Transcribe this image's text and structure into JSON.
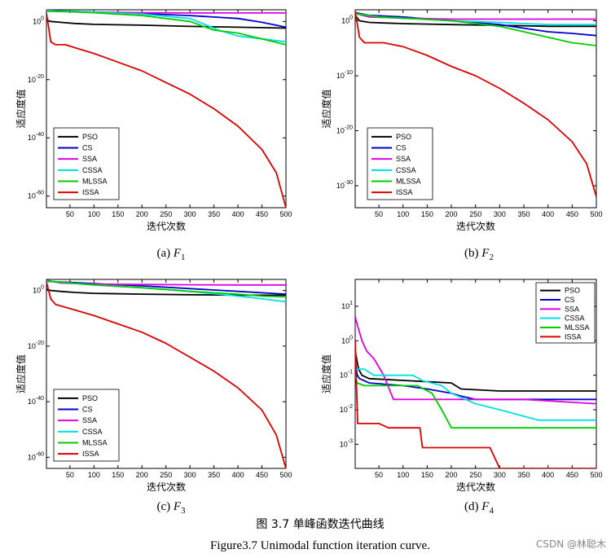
{
  "figure": {
    "caption_cn": "图 3.7  单峰函数迭代曲线",
    "caption_en": "Figure3.7 Unimodal function iteration curve.",
    "watermark": "CSDN @林聪木"
  },
  "series_colors": {
    "PSO": "#000000",
    "CS": "#0000cc",
    "SSA": "#e000e0",
    "CSSA": "#00e0e0",
    "MLSSA": "#00cc00",
    "ISSA": "#dd0000"
  },
  "chart_data": [
    {
      "type": "line",
      "panel": "a",
      "caption_prefix": "(a) ",
      "caption_func": "F",
      "caption_sub": "1",
      "xlabel": "迭代次数",
      "ylabel": "适应度值",
      "yscale": "log",
      "xlim": [
        1,
        500
      ],
      "ylim": [
        1e-64,
        10000.0
      ],
      "xticks": [
        50,
        100,
        150,
        200,
        250,
        300,
        350,
        400,
        450,
        500
      ],
      "ytick_labels": [
        {
          "base": "10",
          "exp": "0",
          "value": 1
        },
        {
          "base": "10",
          "exp": "-20",
          "value": 1e-20
        },
        {
          "base": "10",
          "exp": "-40",
          "value": 1e-40
        },
        {
          "base": "10",
          "exp": "-60",
          "value": 1e-60
        }
      ],
      "legend": [
        "PSO",
        "CS",
        "SSA",
        "CSSA",
        "MLSSA",
        "ISSA"
      ],
      "legend_position": "bottom-left",
      "series": [
        {
          "name": "PSO",
          "x": [
            1,
            10,
            30,
            60,
            100,
            200,
            300,
            400,
            500
          ],
          "y": [
            3,
            1,
            0.5,
            0.2,
            0.1,
            0.05,
            0.02,
            0.01,
            0.005
          ]
        },
        {
          "name": "CS",
          "x": [
            1,
            50,
            100,
            200,
            300,
            400,
            450,
            500
          ],
          "y": [
            5000,
            3000,
            1500,
            500,
            100,
            10,
            0.5,
            0.01
          ]
        },
        {
          "name": "SSA",
          "x": [
            1,
            30,
            100,
            200,
            300,
            400,
            500
          ],
          "y": [
            8000,
            3000,
            1500,
            900,
            800,
            800,
            800
          ]
        },
        {
          "name": "CSSA",
          "x": [
            1,
            50,
            100,
            200,
            300,
            360,
            400,
            450,
            500
          ],
          "y": [
            5000,
            3000,
            1500,
            300,
            10,
            0.001,
            1e-05,
            1e-06,
            1e-07
          ]
        },
        {
          "name": "MLSSA",
          "x": [
            1,
            50,
            100,
            200,
            300,
            350,
            400,
            450,
            500
          ],
          "y": [
            3000,
            2000,
            1000,
            100,
            1,
            0.001,
            0.0001,
            1e-06,
            1e-08
          ]
        },
        {
          "name": "ISSA",
          "x": [
            1,
            10,
            20,
            40,
            60,
            100,
            150,
            200,
            250,
            300,
            350,
            400,
            450,
            480,
            500
          ],
          "y": [
            1000,
            1e-07,
            1e-08,
            1e-08,
            1e-09,
            1e-11,
            1e-14,
            1e-17,
            1e-21,
            1e-25,
            1e-30,
            1e-36,
            1e-44,
            1e-52,
            1e-64
          ]
        }
      ]
    },
    {
      "type": "line",
      "panel": "b",
      "caption_prefix": "(b) ",
      "caption_func": "F",
      "caption_sub": "2",
      "xlabel": "迭代次数",
      "ylabel": "适应度值",
      "yscale": "log",
      "xlim": [
        1,
        500
      ],
      "ylim": [
        1e-34,
        100.0
      ],
      "xticks": [
        50,
        100,
        150,
        200,
        250,
        300,
        350,
        400,
        450,
        500
      ],
      "ytick_labels": [
        {
          "base": "10",
          "exp": "0",
          "value": 1
        },
        {
          "base": "10",
          "exp": "-10",
          "value": 1e-10
        },
        {
          "base": "10",
          "exp": "-20",
          "value": 1e-20
        },
        {
          "base": "10",
          "exp": "-30",
          "value": 1e-30
        }
      ],
      "legend": [
        "PSO",
        "CS",
        "SSA",
        "CSSA",
        "MLSSA",
        "ISSA"
      ],
      "legend_position": "bottom-left",
      "series": [
        {
          "name": "PSO",
          "x": [
            1,
            10,
            30,
            60,
            100,
            200,
            300,
            400,
            500
          ],
          "y": [
            10,
            1,
            0.5,
            0.4,
            0.3,
            0.2,
            0.15,
            0.1,
            0.1
          ]
        },
        {
          "name": "CS",
          "x": [
            1,
            30,
            100,
            200,
            300,
            400,
            450,
            500
          ],
          "y": [
            30,
            10,
            5,
            1,
            0.2,
            0.01,
            0.005,
            0.002
          ]
        },
        {
          "name": "SSA",
          "x": [
            1,
            30,
            100,
            200,
            300,
            400,
            500
          ],
          "y": [
            20,
            5,
            3,
            2,
            2,
            2,
            2
          ]
        },
        {
          "name": "CSSA",
          "x": [
            1,
            50,
            100,
            200,
            300,
            400,
            500
          ],
          "y": [
            20,
            5,
            3,
            1,
            0.5,
            0.2,
            0.2
          ]
        },
        {
          "name": "MLSSA",
          "x": [
            1,
            50,
            100,
            200,
            300,
            350,
            400,
            450,
            500
          ],
          "y": [
            20,
            5,
            3,
            1,
            0.1,
            0.01,
            0.001,
            0.0001,
            3e-05
          ]
        },
        {
          "name": "ISSA",
          "x": [
            1,
            10,
            20,
            40,
            60,
            100,
            150,
            200,
            250,
            300,
            350,
            400,
            450,
            480,
            500
          ],
          "y": [
            50,
            0.001,
            0.0001,
            0.0001,
            0.0001,
            2e-05,
            5e-07,
            5e-09,
            1e-10,
            5e-13,
            1e-15,
            1e-18,
            1e-22,
            1e-26,
            1e-32
          ]
        }
      ]
    },
    {
      "type": "line",
      "panel": "c",
      "caption_prefix": "(c) ",
      "caption_func": "F",
      "caption_sub": "3",
      "xlabel": "迭代次数",
      "ylabel": "适应度值",
      "yscale": "log",
      "xlim": [
        1,
        500
      ],
      "ylim": [
        1e-64,
        10000.0
      ],
      "xticks": [
        50,
        100,
        150,
        200,
        250,
        300,
        350,
        400,
        450,
        500
      ],
      "ytick_labels": [
        {
          "base": "10",
          "exp": "0",
          "value": 1
        },
        {
          "base": "10",
          "exp": "-20",
          "value": 1e-20
        },
        {
          "base": "10",
          "exp": "-40",
          "value": 1e-40
        },
        {
          "base": "10",
          "exp": "-60",
          "value": 1e-60
        }
      ],
      "legend": [
        "PSO",
        "CS",
        "SSA",
        "CSSA",
        "MLSSA",
        "ISSA"
      ],
      "legend_position": "bottom-left",
      "series": [
        {
          "name": "PSO",
          "x": [
            1,
            10,
            30,
            60,
            100,
            200,
            300,
            400,
            500
          ],
          "y": [
            3,
            1,
            0.5,
            0.2,
            0.1,
            0.05,
            0.03,
            0.02,
            0.02
          ]
        },
        {
          "name": "CS",
          "x": [
            1,
            50,
            100,
            200,
            300,
            400,
            500
          ],
          "y": [
            2000,
            800,
            300,
            50,
            5,
            0.5,
            0.05
          ]
        },
        {
          "name": "SSA",
          "x": [
            1,
            30,
            100,
            200,
            300,
            400,
            500
          ],
          "y": [
            5000,
            500,
            200,
            150,
            120,
            100,
            100
          ]
        },
        {
          "name": "CSSA",
          "x": [
            1,
            50,
            100,
            200,
            300,
            400,
            450,
            500
          ],
          "y": [
            3000,
            500,
            100,
            10,
            0.5,
            0.01,
            0.001,
            0.0001
          ]
        },
        {
          "name": "MLSSA",
          "x": [
            1,
            50,
            100,
            200,
            300,
            400,
            450,
            500
          ],
          "y": [
            3000,
            500,
            100,
            10,
            0.5,
            0.05,
            0.01,
            0.005
          ]
        },
        {
          "name": "ISSA",
          "x": [
            1,
            10,
            20,
            40,
            60,
            100,
            150,
            200,
            250,
            300,
            350,
            400,
            450,
            480,
            500
          ],
          "y": [
            1000,
            0.001,
            1e-05,
            1e-06,
            1e-07,
            1e-09,
            1e-12,
            1e-15,
            1e-19,
            1e-24,
            1e-29,
            1e-35,
            1e-43,
            1e-52,
            1e-64
          ]
        }
      ]
    },
    {
      "type": "line",
      "panel": "d",
      "caption_prefix": "(d) ",
      "caption_func": "F",
      "caption_sub": "4",
      "xlabel": "迭代次数",
      "ylabel": "适应度值",
      "yscale": "log",
      "xlim": [
        1,
        500
      ],
      "ylim": [
        0.0002,
        60
      ],
      "xticks": [
        50,
        100,
        150,
        200,
        250,
        300,
        350,
        400,
        450,
        500
      ],
      "ytick_labels": [
        {
          "base": "10",
          "exp": "1",
          "value": 10
        },
        {
          "base": "10",
          "exp": "0",
          "value": 1
        },
        {
          "base": "10",
          "exp": "-1",
          "value": 0.1
        },
        {
          "base": "10",
          "exp": "-2",
          "value": 0.01
        },
        {
          "base": "10",
          "exp": "-3",
          "value": 0.001
        }
      ],
      "legend": [
        "PSO",
        "CS",
        "SSA",
        "CSSA",
        "MLSSA",
        "ISSA"
      ],
      "legend_position": "top-right",
      "series": [
        {
          "name": "PSO",
          "x": [
            1,
            8,
            15,
            30,
            200,
            220,
            300,
            500
          ],
          "y": [
            0.5,
            0.15,
            0.1,
            0.08,
            0.06,
            0.04,
            0.035,
            0.035
          ]
        },
        {
          "name": "CS",
          "x": [
            1,
            5,
            10,
            30,
            100,
            150,
            200,
            220,
            250,
            350,
            500
          ],
          "y": [
            0.3,
            0.1,
            0.08,
            0.06,
            0.05,
            0.04,
            0.03,
            0.025,
            0.02,
            0.02,
            0.02
          ]
        },
        {
          "name": "SSA",
          "x": [
            1,
            5,
            15,
            25,
            40,
            60,
            80,
            100,
            350,
            500
          ],
          "y": [
            5,
            3,
            1,
            0.5,
            0.3,
            0.1,
            0.02,
            0.02,
            0.02,
            0.015
          ]
        },
        {
          "name": "CSSA",
          "x": [
            1,
            5,
            20,
            40,
            120,
            140,
            180,
            200,
            250,
            300,
            380,
            500
          ],
          "y": [
            0.15,
            0.15,
            0.15,
            0.1,
            0.1,
            0.07,
            0.05,
            0.03,
            0.015,
            0.01,
            0.005,
            0.005
          ]
        },
        {
          "name": "MLSSA",
          "x": [
            1,
            5,
            20,
            60,
            130,
            160,
            180,
            200,
            500
          ],
          "y": [
            0.1,
            0.06,
            0.05,
            0.05,
            0.05,
            0.03,
            0.01,
            0.003,
            0.003
          ]
        },
        {
          "name": "ISSA",
          "x": [
            1,
            3,
            6,
            50,
            70,
            110,
            135,
            140,
            280,
            300,
            500
          ],
          "y": [
            1,
            0.1,
            0.004,
            0.004,
            0.003,
            0.003,
            0.003,
            0.0008,
            0.0008,
            0.0002,
            0.0002
          ]
        }
      ]
    }
  ]
}
